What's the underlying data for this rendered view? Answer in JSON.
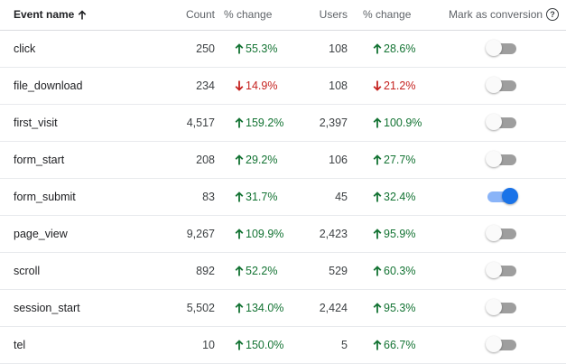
{
  "header": {
    "event_name": "Event name",
    "count": "Count",
    "pct_change_1": "% change",
    "users": "Users",
    "pct_change_2": "% change",
    "conversion": "Mark as conversion",
    "help_glyph": "?"
  },
  "colors": {
    "up": "#137333",
    "down": "#c5221f",
    "toggle_on": "#1a73e8"
  },
  "rows": [
    {
      "name": "click",
      "count": "250",
      "count_change": "55.3%",
      "count_dir": "up",
      "users": "108",
      "users_change": "28.6%",
      "users_dir": "up",
      "conversion": false
    },
    {
      "name": "file_download",
      "count": "234",
      "count_change": "14.9%",
      "count_dir": "down",
      "users": "108",
      "users_change": "21.2%",
      "users_dir": "down",
      "conversion": false
    },
    {
      "name": "first_visit",
      "count": "4,517",
      "count_change": "159.2%",
      "count_dir": "up",
      "users": "2,397",
      "users_change": "100.9%",
      "users_dir": "up",
      "conversion": false
    },
    {
      "name": "form_start",
      "count": "208",
      "count_change": "29.2%",
      "count_dir": "up",
      "users": "106",
      "users_change": "27.7%",
      "users_dir": "up",
      "conversion": false
    },
    {
      "name": "form_submit",
      "count": "83",
      "count_change": "31.7%",
      "count_dir": "up",
      "users": "45",
      "users_change": "32.4%",
      "users_dir": "up",
      "conversion": true
    },
    {
      "name": "page_view",
      "count": "9,267",
      "count_change": "109.9%",
      "count_dir": "up",
      "users": "2,423",
      "users_change": "95.9%",
      "users_dir": "up",
      "conversion": false
    },
    {
      "name": "scroll",
      "count": "892",
      "count_change": "52.2%",
      "count_dir": "up",
      "users": "529",
      "users_change": "60.3%",
      "users_dir": "up",
      "conversion": false
    },
    {
      "name": "session_start",
      "count": "5,502",
      "count_change": "134.0%",
      "count_dir": "up",
      "users": "2,424",
      "users_change": "95.3%",
      "users_dir": "up",
      "conversion": false
    },
    {
      "name": "tel",
      "count": "10",
      "count_change": "150.0%",
      "count_dir": "up",
      "users": "5",
      "users_change": "66.7%",
      "users_dir": "up",
      "conversion": false
    }
  ]
}
